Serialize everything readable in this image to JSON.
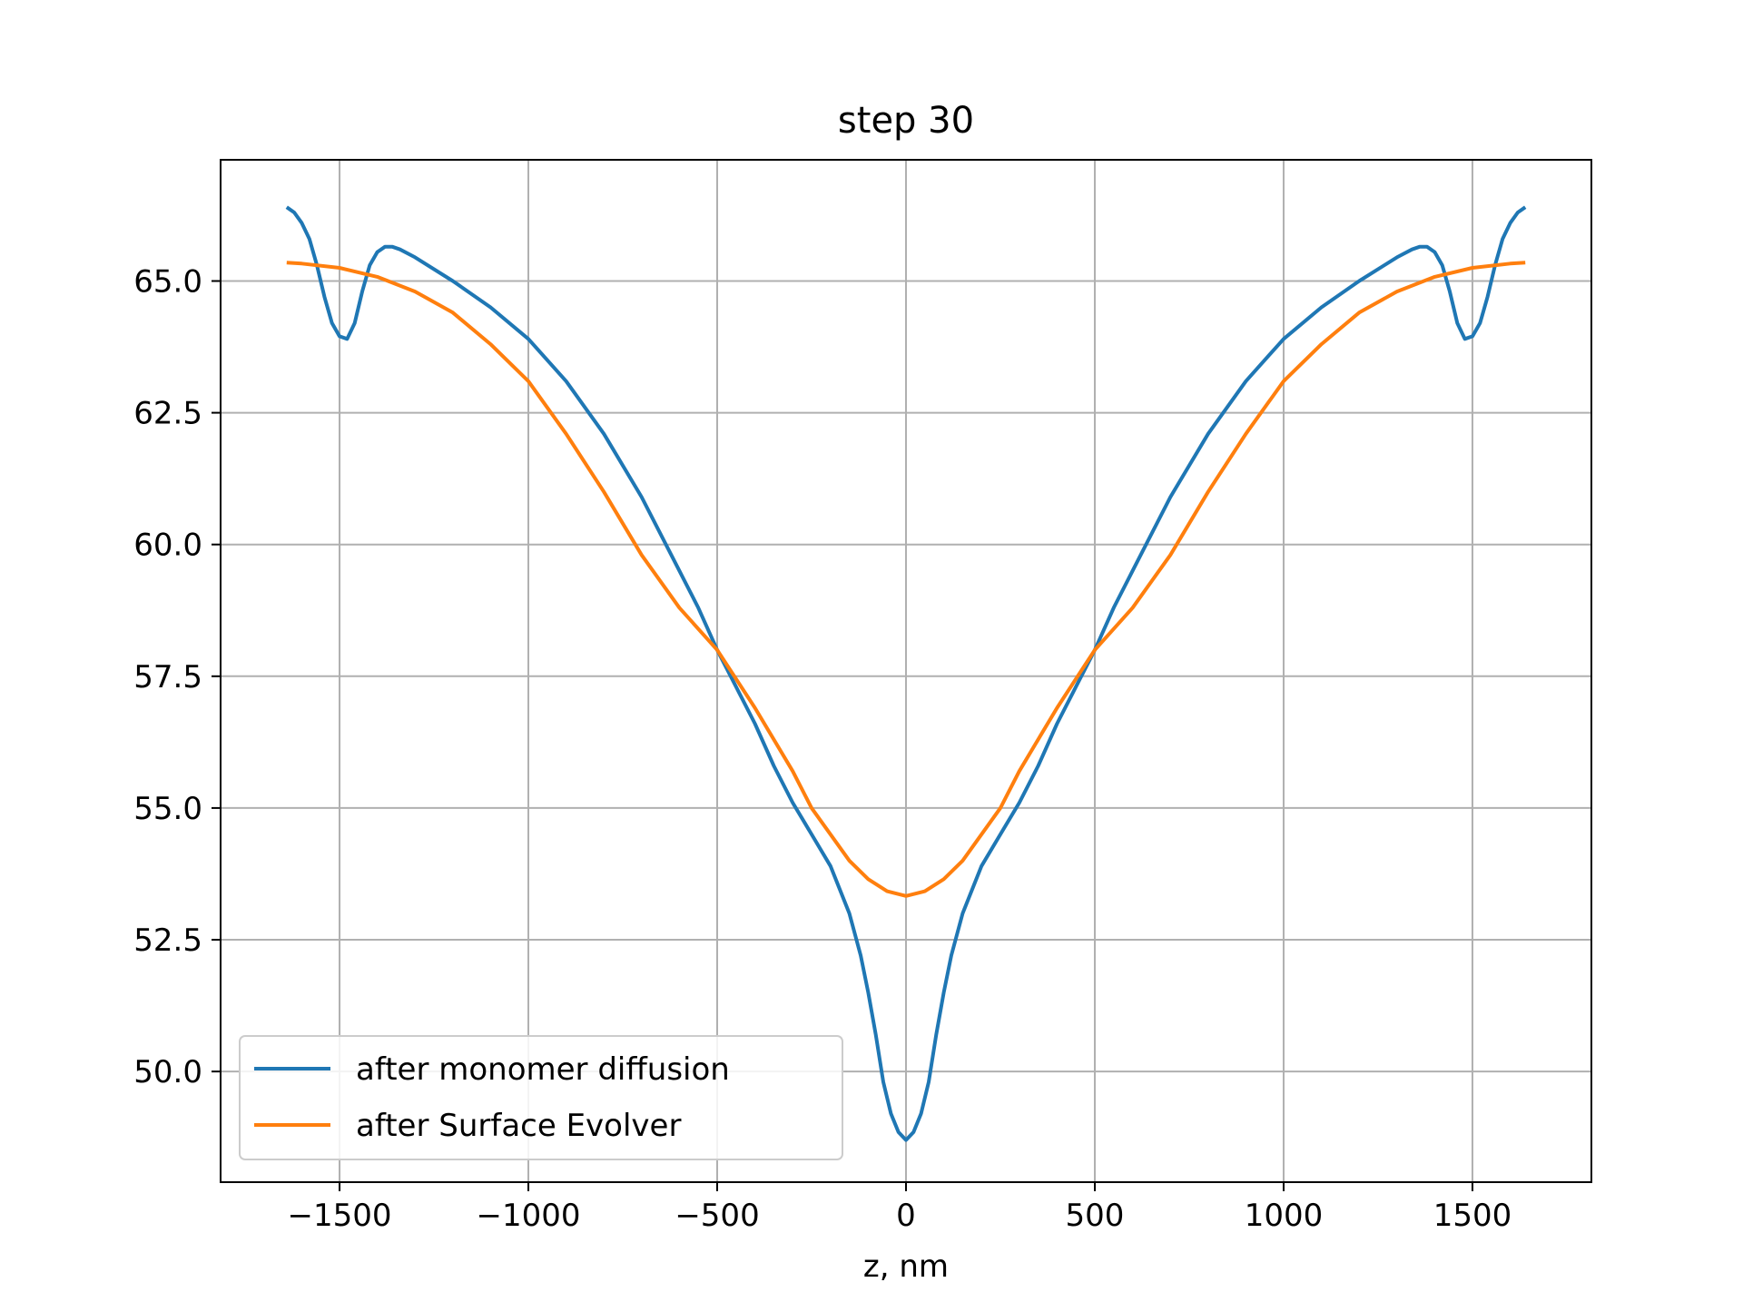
{
  "chart_data": {
    "type": "line",
    "title": "step 30",
    "xlabel": "z, nm",
    "ylabel": "",
    "xlim": [
      -1815,
      1815
    ],
    "ylim": [
      47.9,
      67.3
    ],
    "grid": true,
    "legend_position": "lower-left",
    "x_ticks": [
      {
        "value": -1500,
        "label": "−1500"
      },
      {
        "value": -1000,
        "label": "−1000"
      },
      {
        "value": -500,
        "label": "−500"
      },
      {
        "value": 0,
        "label": "0"
      },
      {
        "value": 500,
        "label": "500"
      },
      {
        "value": 1000,
        "label": "1000"
      },
      {
        "value": 1500,
        "label": "1500"
      }
    ],
    "y_ticks": [
      {
        "value": 50.0,
        "label": "50.0"
      },
      {
        "value": 52.5,
        "label": "52.5"
      },
      {
        "value": 55.0,
        "label": "55.0"
      },
      {
        "value": 57.5,
        "label": "57.5"
      },
      {
        "value": 60.0,
        "label": "60.0"
      },
      {
        "value": 62.5,
        "label": "62.5"
      },
      {
        "value": 65.0,
        "label": "65.0"
      }
    ],
    "series": [
      {
        "name": "after monomer diffusion",
        "color": "#1f77b4",
        "points": [
          [
            -1640,
            66.4
          ],
          [
            -1620,
            66.3
          ],
          [
            -1600,
            66.1
          ],
          [
            -1580,
            65.8
          ],
          [
            -1560,
            65.3
          ],
          [
            -1540,
            64.7
          ],
          [
            -1520,
            64.2
          ],
          [
            -1500,
            63.95
          ],
          [
            -1480,
            63.9
          ],
          [
            -1460,
            64.2
          ],
          [
            -1440,
            64.8
          ],
          [
            -1420,
            65.3
          ],
          [
            -1400,
            65.55
          ],
          [
            -1380,
            65.65
          ],
          [
            -1360,
            65.65
          ],
          [
            -1340,
            65.6
          ],
          [
            -1300,
            65.45
          ],
          [
            -1200,
            65.0
          ],
          [
            -1100,
            64.5
          ],
          [
            -1000,
            63.9
          ],
          [
            -900,
            63.1
          ],
          [
            -800,
            62.1
          ],
          [
            -700,
            60.9
          ],
          [
            -600,
            59.5
          ],
          [
            -550,
            58.8
          ],
          [
            -500,
            58.0
          ],
          [
            -450,
            57.3
          ],
          [
            -400,
            56.6
          ],
          [
            -350,
            55.8
          ],
          [
            -300,
            55.1
          ],
          [
            -250,
            54.5
          ],
          [
            -200,
            53.9
          ],
          [
            -150,
            53.0
          ],
          [
            -120,
            52.2
          ],
          [
            -100,
            51.5
          ],
          [
            -80,
            50.7
          ],
          [
            -60,
            49.8
          ],
          [
            -40,
            49.2
          ],
          [
            -20,
            48.85
          ],
          [
            0,
            48.7
          ],
          [
            20,
            48.85
          ],
          [
            40,
            49.2
          ],
          [
            60,
            49.8
          ],
          [
            80,
            50.7
          ],
          [
            100,
            51.5
          ],
          [
            120,
            52.2
          ],
          [
            150,
            53.0
          ],
          [
            200,
            53.9
          ],
          [
            250,
            54.5
          ],
          [
            300,
            55.1
          ],
          [
            350,
            55.8
          ],
          [
            400,
            56.6
          ],
          [
            450,
            57.3
          ],
          [
            500,
            58.0
          ],
          [
            550,
            58.8
          ],
          [
            600,
            59.5
          ],
          [
            700,
            60.9
          ],
          [
            800,
            62.1
          ],
          [
            900,
            63.1
          ],
          [
            1000,
            63.9
          ],
          [
            1100,
            64.5
          ],
          [
            1200,
            65.0
          ],
          [
            1300,
            65.45
          ],
          [
            1340,
            65.6
          ],
          [
            1360,
            65.65
          ],
          [
            1380,
            65.65
          ],
          [
            1400,
            65.55
          ],
          [
            1420,
            65.3
          ],
          [
            1440,
            64.8
          ],
          [
            1460,
            64.2
          ],
          [
            1480,
            63.9
          ],
          [
            1500,
            63.95
          ],
          [
            1520,
            64.2
          ],
          [
            1540,
            64.7
          ],
          [
            1560,
            65.3
          ],
          [
            1580,
            65.8
          ],
          [
            1600,
            66.1
          ],
          [
            1620,
            66.3
          ],
          [
            1640,
            66.4
          ]
        ]
      },
      {
        "name": "after Surface Evolver",
        "color": "#ff7f0e",
        "points": [
          [
            -1640,
            65.35
          ],
          [
            -1600,
            65.33
          ],
          [
            -1500,
            65.25
          ],
          [
            -1400,
            65.08
          ],
          [
            -1300,
            64.8
          ],
          [
            -1200,
            64.4
          ],
          [
            -1100,
            63.8
          ],
          [
            -1000,
            63.1
          ],
          [
            -900,
            62.1
          ],
          [
            -800,
            61.0
          ],
          [
            -700,
            59.8
          ],
          [
            -600,
            58.8
          ],
          [
            -500,
            58.0
          ],
          [
            -400,
            56.9
          ],
          [
            -300,
            55.7
          ],
          [
            -250,
            55.0
          ],
          [
            -200,
            54.5
          ],
          [
            -150,
            54.0
          ],
          [
            -100,
            53.65
          ],
          [
            -50,
            53.42
          ],
          [
            0,
            53.33
          ],
          [
            50,
            53.42
          ],
          [
            100,
            53.65
          ],
          [
            150,
            54.0
          ],
          [
            200,
            54.5
          ],
          [
            250,
            55.0
          ],
          [
            300,
            55.7
          ],
          [
            400,
            56.9
          ],
          [
            500,
            58.0
          ],
          [
            600,
            58.8
          ],
          [
            700,
            59.8
          ],
          [
            800,
            61.0
          ],
          [
            900,
            62.1
          ],
          [
            1000,
            63.1
          ],
          [
            1100,
            63.8
          ],
          [
            1200,
            64.4
          ],
          [
            1300,
            64.8
          ],
          [
            1400,
            65.08
          ],
          [
            1500,
            65.25
          ],
          [
            1600,
            65.33
          ],
          [
            1640,
            65.35
          ]
        ]
      }
    ]
  }
}
